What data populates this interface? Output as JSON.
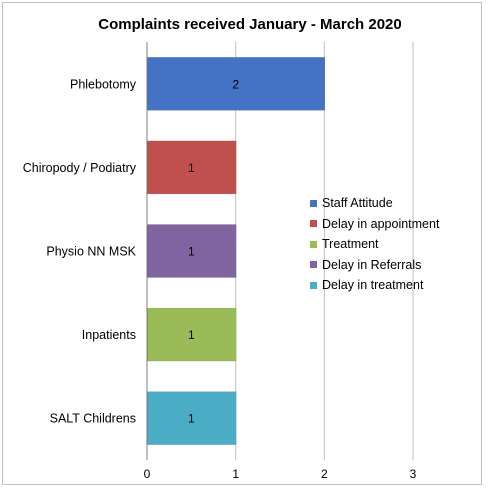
{
  "chart_data": {
    "type": "bar",
    "orientation": "horizontal",
    "title": "Complaints received January - March 2020",
    "categories": [
      "Phlebotomy",
      "Chiropody / Podiatry",
      "Physio NN MSK",
      "Inpatients",
      "SALT Childrens"
    ],
    "values": [
      2,
      1,
      1,
      1,
      1
    ],
    "data_labels": [
      "2",
      "1",
      "1",
      "1",
      "1"
    ],
    "colors": [
      "#4472c4",
      "#c0504d",
      "#8064a2",
      "#9bbb59",
      "#4bacc6"
    ],
    "xlabel": "",
    "ylabel": "",
    "xlim": [
      0,
      3
    ],
    "x_ticks": [
      "0",
      "1",
      "2",
      "3"
    ],
    "grid": "vertical gridlines",
    "legend_position": "right",
    "legend": [
      {
        "name": "Staff Attitude",
        "color": "#4472c4"
      },
      {
        "name": "Delay in appointment",
        "color": "#c0504d"
      },
      {
        "name": "Treatment",
        "color": "#9bbb59"
      },
      {
        "name": "Delay in Referrals",
        "color": "#8064a2"
      },
      {
        "name": "Delay in treatment",
        "color": "#4bacc6"
      }
    ]
  }
}
